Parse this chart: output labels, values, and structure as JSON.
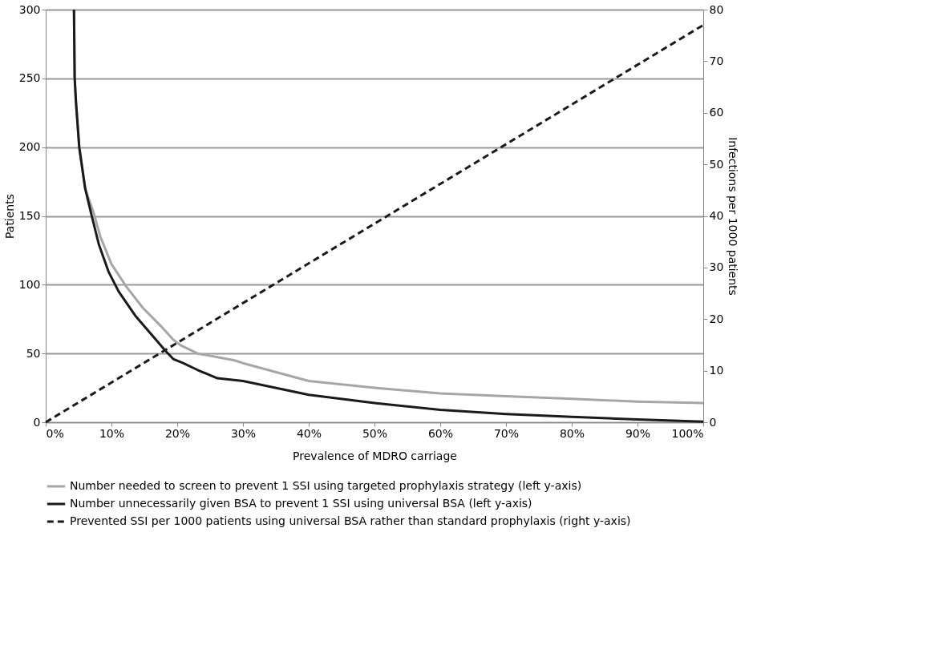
{
  "chart_data": {
    "type": "line",
    "xlabel": "Prevalence of MDRO carriage",
    "ylabel": "Patients",
    "y2label": "Infections per 1000 patients",
    "xlim": [
      0,
      100
    ],
    "xticks": [
      {
        "value": 0,
        "label": "0%"
      },
      {
        "value": 10,
        "label": "10%"
      },
      {
        "value": 20,
        "label": "20%"
      },
      {
        "value": 30,
        "label": "30%"
      },
      {
        "value": 40,
        "label": "40%"
      },
      {
        "value": 50,
        "label": "50%"
      },
      {
        "value": 60,
        "label": "60%"
      },
      {
        "value": 70,
        "label": "70%"
      },
      {
        "value": 80,
        "label": "80%"
      },
      {
        "value": 90,
        "label": "90%"
      },
      {
        "value": 100,
        "label": "100%"
      }
    ],
    "ylim": [
      0,
      300
    ],
    "yticks": [
      0,
      50,
      100,
      150,
      200,
      250,
      300
    ],
    "y2lim": [
      0,
      80
    ],
    "y2ticks": [
      0,
      10,
      20,
      30,
      40,
      50,
      60,
      70,
      80
    ],
    "grid": "y",
    "legend": "bottom",
    "marker": "none",
    "series": [
      {
        "name": "Number needed to screen to prevent 1 SSI using targeted prophylaxis strategy (left y-axis)",
        "color": "#a6a6a8",
        "line_style": "solid",
        "axis": "y",
        "x": [
          4.3,
          4.4,
          4.6,
          5.1,
          6.0,
          7.3,
          8.3,
          10.0,
          12.2,
          14.8,
          17.5,
          19.4,
          20.5,
          23.1,
          28.7,
          30,
          40,
          50,
          60,
          70,
          80,
          90,
          100
        ],
        "values": [
          300,
          250,
          233,
          200,
          170,
          152,
          135,
          115,
          99,
          83,
          70,
          60,
          56,
          50,
          45,
          43,
          30,
          25,
          21,
          19,
          17,
          15,
          14
        ]
      },
      {
        "name": "Number unnecessarily given BSA to prevent 1 SSI using universal BSA (left y-axis)",
        "color": "#1a1a1a",
        "line_style": "solid",
        "axis": "y",
        "x": [
          4.3,
          4.4,
          4.6,
          5.1,
          6.0,
          7.0,
          8.1,
          9.6,
          11.1,
          13.7,
          16.4,
          18.2,
          19.4,
          20.9,
          23.1,
          26.1,
          30,
          40,
          50,
          60,
          70,
          80,
          90,
          100
        ],
        "values": [
          300,
          251,
          233,
          200,
          170,
          150,
          129,
          109,
          95,
          77,
          62,
          52,
          46,
          43,
          38,
          32,
          30,
          20,
          14,
          9,
          6,
          4,
          2,
          0.5
        ]
      },
      {
        "name": "Prevented SSI per 1000 patients using universal BSA rather than standard prophylaxis (right y-axis)",
        "color": "#1a1a1a",
        "line_style": "dashed",
        "axis": "y2",
        "x": [
          0,
          100
        ],
        "values": [
          0,
          77
        ]
      }
    ]
  }
}
